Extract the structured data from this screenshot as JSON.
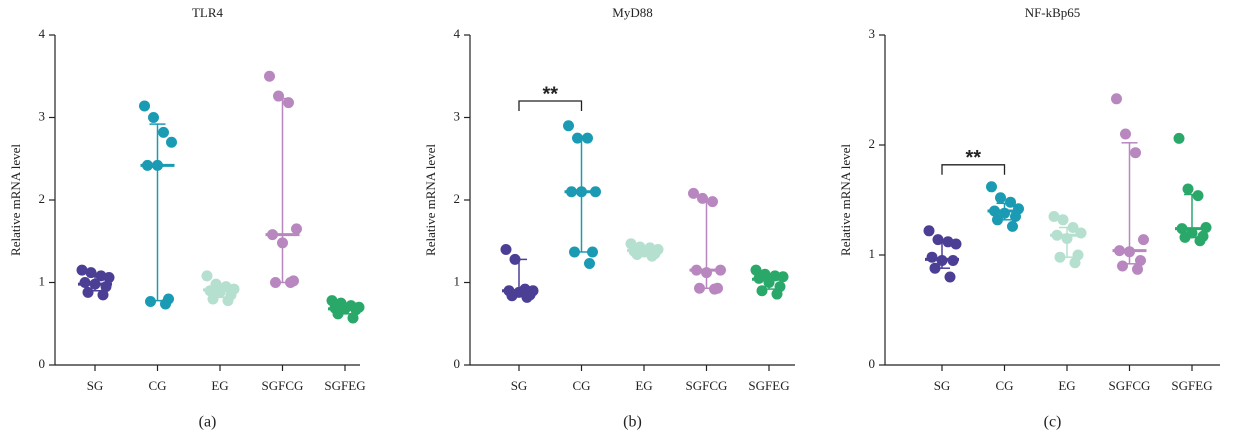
{
  "chart_data": [
    {
      "type": "dot",
      "title": "TLR4",
      "caption": "(a)",
      "ylabel": "Relative mRNA level",
      "categories": [
        "SG",
        "CG",
        "EG",
        "SGFCG",
        "SGFEG"
      ],
      "colors": [
        "#4b3f95",
        "#1a9bb3",
        "#b5e0cf",
        "#b987bf",
        "#2aa86a"
      ],
      "ylim": [
        0,
        4
      ],
      "yticks": [
        0,
        1,
        2,
        3,
        4
      ],
      "points": [
        [
          1.15,
          1.12,
          1.08,
          1.06,
          1.0,
          0.98,
          0.95,
          0.88,
          0.85
        ],
        [
          3.14,
          3.0,
          2.82,
          2.7,
          2.42,
          2.42,
          0.8,
          0.77,
          0.74
        ],
        [
          1.08,
          0.98,
          0.95,
          0.92,
          0.9,
          0.88,
          0.85,
          0.8,
          0.78
        ],
        [
          3.5,
          3.26,
          3.18,
          1.65,
          1.58,
          1.48,
          1.02,
          1.0,
          1.0
        ],
        [
          0.78,
          0.75,
          0.72,
          0.7,
          0.69,
          0.68,
          0.67,
          0.62,
          0.57
        ]
      ],
      "medians": [
        0.98,
        2.42,
        0.91,
        1.58,
        0.68
      ],
      "lows": [
        0.9,
        0.78,
        0.82,
        1.0,
        0.62
      ],
      "highs": [
        1.08,
        2.92,
        0.98,
        3.23,
        0.74
      ],
      "annotations": []
    },
    {
      "type": "dot",
      "title": "MyD88",
      "caption": "(b)",
      "ylabel": "Relative mRNA level",
      "categories": [
        "SG",
        "CG",
        "EG",
        "SGFCG",
        "SGFEG"
      ],
      "colors": [
        "#4b3f95",
        "#1a9bb3",
        "#b5e0cf",
        "#b987bf",
        "#2aa86a"
      ],
      "ylim": [
        0,
        4
      ],
      "yticks": [
        0,
        1,
        2,
        3,
        4
      ],
      "points": [
        [
          1.4,
          1.28,
          0.92,
          0.9,
          0.9,
          0.88,
          0.85,
          0.84,
          0.82
        ],
        [
          2.9,
          2.75,
          2.75,
          2.1,
          2.1,
          2.1,
          1.37,
          1.37,
          1.23
        ],
        [
          1.47,
          1.43,
          1.42,
          1.4,
          1.38,
          1.37,
          1.35,
          1.34,
          1.32
        ],
        [
          2.08,
          2.02,
          1.98,
          1.15,
          1.15,
          1.12,
          0.93,
          0.93,
          0.92
        ],
        [
          1.15,
          1.1,
          1.08,
          1.07,
          1.05,
          1.0,
          0.95,
          0.9,
          0.86
        ]
      ],
      "medians": [
        0.9,
        2.1,
        1.39,
        1.15,
        1.04
      ],
      "lows": [
        0.85,
        1.37,
        1.34,
        0.93,
        0.92
      ],
      "highs": [
        1.28,
        2.75,
        1.44,
        2.0,
        1.1
      ],
      "annotations": [
        {
          "text": "**",
          "from": 0,
          "to": 1,
          "y": 3.2
        }
      ]
    },
    {
      "type": "dot",
      "title": "NF-kBp65",
      "caption": "(c)",
      "ylabel": "Relative mRNA level",
      "categories": [
        "SG",
        "CG",
        "EG",
        "SGFCG",
        "SGFEG"
      ],
      "colors": [
        "#4b3f95",
        "#1a9bb3",
        "#b5e0cf",
        "#b987bf",
        "#2aa86a"
      ],
      "ylim": [
        0,
        3
      ],
      "yticks": [
        0,
        1,
        2,
        3
      ],
      "points": [
        [
          1.22,
          1.14,
          1.12,
          1.1,
          0.98,
          0.95,
          0.95,
          0.88,
          0.8
        ],
        [
          1.62,
          1.52,
          1.48,
          1.42,
          1.4,
          1.38,
          1.35,
          1.32,
          1.26
        ],
        [
          1.35,
          1.32,
          1.25,
          1.2,
          1.18,
          1.15,
          1.0,
          0.98,
          0.93
        ],
        [
          2.42,
          2.1,
          1.93,
          1.14,
          1.04,
          1.03,
          0.95,
          0.9,
          0.87
        ],
        [
          2.06,
          1.6,
          1.54,
          1.25,
          1.24,
          1.2,
          1.17,
          1.16,
          1.13
        ]
      ],
      "medians": [
        0.96,
        1.4,
        1.18,
        1.04,
        1.24
      ],
      "lows": [
        0.88,
        1.32,
        0.98,
        0.92,
        1.16
      ],
      "highs": [
        1.12,
        1.47,
        1.25,
        2.02,
        1.55
      ],
      "annotations": [
        {
          "text": "**",
          "from": 0,
          "to": 1,
          "y": 1.82
        }
      ]
    }
  ]
}
